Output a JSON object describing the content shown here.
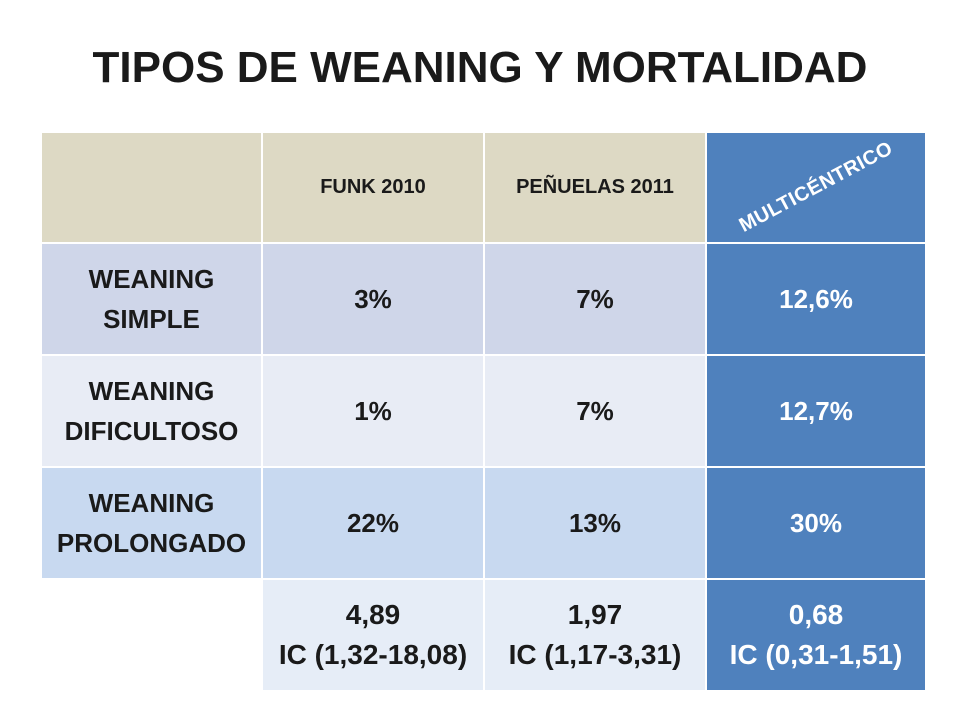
{
  "slide": {
    "title": "TIPOS DE WEANING Y MORTALIDAD"
  },
  "colors": {
    "title_text": "#1A1A1A",
    "header_bg": "#DDD9C4",
    "accent_column": "#4F81BD",
    "accent_text": "#FFFFFF",
    "row_1_bg": "#CFD6E9",
    "row_2_bg": "#E8ECF5",
    "row_3_bg": "#C8D9F0",
    "row_4_bg": "#E6EDF7"
  },
  "table": {
    "columns": [
      "FUNK 2010",
      "PEÑUELAS 2011",
      "MULTICÉNTRICO"
    ],
    "rows": [
      {
        "label": [
          "WEANING",
          "SIMPLE"
        ],
        "values": [
          "3%",
          "7%",
          "12,6%"
        ]
      },
      {
        "label": [
          "WEANING",
          "DIFICULTOSO"
        ],
        "values": [
          "1%",
          "7%",
          "12,7%"
        ]
      },
      {
        "label": [
          "WEANING",
          "PROLONGADO"
        ],
        "values": [
          "22%",
          "13%",
          "30%"
        ]
      }
    ],
    "summary": [
      {
        "value": "4,89",
        "ci": "IC (1,32-18,08)"
      },
      {
        "value": "1,97",
        "ci": "IC (1,17-3,31)"
      },
      {
        "value": "0,68",
        "ci": "IC (0,31-1,51)"
      }
    ]
  }
}
